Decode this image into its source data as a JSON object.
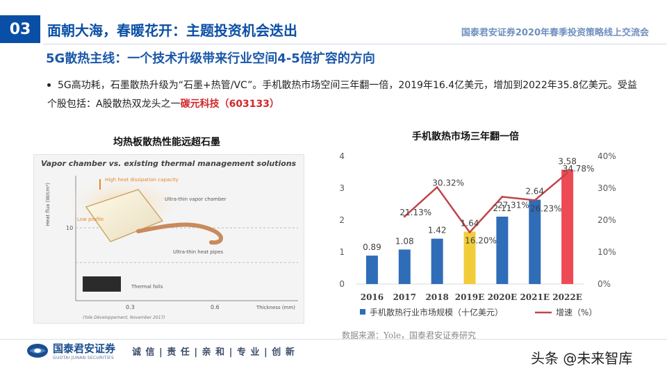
{
  "header": {
    "section_number": "03",
    "title": "面朝大海，春暖花开：主题投资机会迭出",
    "event": "国泰君安证券2020年春季投资策略线上交流会"
  },
  "subtitle": "5G散热主线：一个技术升级带来行业空间4-5倍扩容的方向",
  "bullet": {
    "text_part1": "5G高功耗，石墨散热升级为“石墨+热管/VC”。手机散热市场空间三年翻一倍，2019年16.4亿美元，增加到2022年35.8亿美元。受益个股包括：A股散热双龙头之一",
    "highlight": "碳元科技（603133）"
  },
  "left_figure": {
    "title": "均热板散热性能远超石墨",
    "image_title": "Vapor chamber vs. existing thermal management solutions",
    "y_label": "Heat flux (W/cm²)",
    "x_label": "Thickness (mm)",
    "y_tick": "10",
    "x_ticks": [
      "0.3",
      "0.6"
    ],
    "labels": {
      "high_heat": "High heat dissipation capacity",
      "vapor_chamber": "Ultra-thin vapor chamber",
      "low_profile": "Low profile",
      "heat_pipes": "Ultra-thin heat pipes",
      "thermal_foils": "Thermal foils"
    },
    "credit": "(Yole Développement, November 2017)"
  },
  "chart_data": {
    "type": "bar",
    "title": "手机散热市场三年翻一倍",
    "categories": [
      "2016",
      "2017",
      "2018",
      "2019E",
      "2020E",
      "2021E",
      "2022E"
    ],
    "series": [
      {
        "name": "手机散热行业市场规模（十亿美元）",
        "type": "bar",
        "axis": "left",
        "values": [
          0.89,
          1.08,
          1.42,
          1.64,
          2.11,
          2.64,
          3.58
        ],
        "bar_colors": [
          "#2f6db8",
          "#2f6db8",
          "#2f6db8",
          "#f2cd3a",
          "#2f6db8",
          "#2f6db8",
          "#ee4a55"
        ]
      },
      {
        "name": "增速（%）",
        "type": "line",
        "axis": "right",
        "values": [
          null,
          21.13,
          30.32,
          16.2,
          27.31,
          26.23,
          34.78
        ],
        "color": "#c0444b"
      }
    ],
    "bar_labels": [
      "0.89",
      "1.08",
      "1.42",
      "1.64",
      "2.11",
      "2.64",
      "3.58"
    ],
    "line_labels": [
      "",
      "21.13%",
      "30.32%",
      "16.20%",
      "27.31%",
      "26.23%",
      "34.78%"
    ],
    "ylim": [
      0,
      4
    ],
    "y_ticks": [
      "0",
      "1",
      "2",
      "3",
      "4"
    ],
    "y2lim": [
      0,
      40
    ],
    "y2_ticks": [
      "0%",
      "10%",
      "20%",
      "30%",
      "40%"
    ],
    "grid": false,
    "legend_position": "bottom"
  },
  "source": "数据来源：Yole，国泰君安证券研究",
  "footer": {
    "logo_cn": "国泰君安证券",
    "logo_en": "GUOTAI JUNAN SECURITIES",
    "slogan": "诚 信 | 责 任 | 亲 和 | 专 业 | 创 新",
    "watermark": "头条 @未来智库"
  }
}
